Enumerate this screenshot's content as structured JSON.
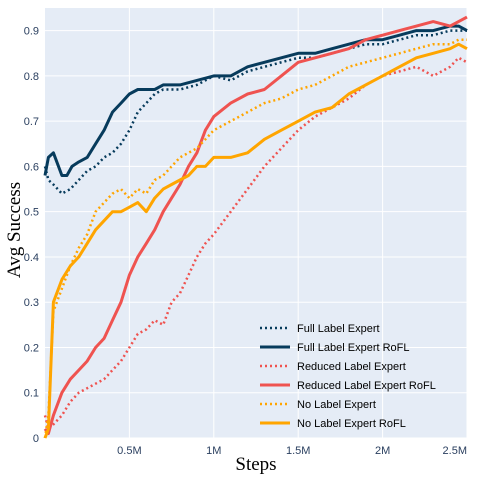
{
  "colors": {
    "plot_bg": "#e5ecf6",
    "grid": "#ffffff",
    "tick_text": "#2a3f5f",
    "full_label": "#073b5c",
    "reduced_label": "#ef5350",
    "no_label": "#ffa500"
  },
  "chart_data": {
    "type": "line",
    "xlabel": "Steps",
    "ylabel": "Avg Success",
    "xlim": [
      0,
      2500000
    ],
    "ylim": [
      0,
      0.95
    ],
    "xticks": [
      {
        "value": 500000,
        "label": "0.5M"
      },
      {
        "value": 1000000,
        "label": "1M"
      },
      {
        "value": 1500000,
        "label": "1.5M"
      },
      {
        "value": 2000000,
        "label": "2M"
      },
      {
        "value": 2500000,
        "label": "2.5M"
      }
    ],
    "yticks": [
      {
        "value": 0,
        "label": "0"
      },
      {
        "value": 0.1,
        "label": "0.1"
      },
      {
        "value": 0.2,
        "label": "0.2"
      },
      {
        "value": 0.3,
        "label": "0.3"
      },
      {
        "value": 0.4,
        "label": "0.4"
      },
      {
        "value": 0.5,
        "label": "0.5"
      },
      {
        "value": 0.6,
        "label": "0.6"
      },
      {
        "value": 0.7,
        "label": "0.7"
      },
      {
        "value": 0.8,
        "label": "0.8"
      },
      {
        "value": 0.9,
        "label": "0.9"
      }
    ],
    "grid": true,
    "legend_position": "bottom-right",
    "series": [
      {
        "name": "Full Label Expert",
        "color": "#073b5c",
        "dash": "dot",
        "x": [
          0,
          20000,
          50000,
          100000,
          150000,
          200000,
          250000,
          300000,
          350000,
          400000,
          450000,
          500000,
          550000,
          600000,
          650000,
          700000,
          800000,
          900000,
          1000000,
          1100000,
          1200000,
          1300000,
          1400000,
          1500000,
          1600000,
          1700000,
          1800000,
          1900000,
          2000000,
          2100000,
          2200000,
          2300000,
          2400000,
          2450000,
          2500000
        ],
        "y": [
          0.6,
          0.57,
          0.56,
          0.54,
          0.55,
          0.57,
          0.59,
          0.6,
          0.62,
          0.63,
          0.65,
          0.68,
          0.72,
          0.74,
          0.76,
          0.77,
          0.77,
          0.78,
          0.8,
          0.79,
          0.81,
          0.82,
          0.83,
          0.84,
          0.84,
          0.85,
          0.86,
          0.87,
          0.87,
          0.88,
          0.89,
          0.89,
          0.9,
          0.9,
          0.9
        ]
      },
      {
        "name": "Full Label Expert RoFL",
        "color": "#073b5c",
        "dash": "solid",
        "x": [
          0,
          20000,
          50000,
          80000,
          100000,
          130000,
          160000,
          200000,
          250000,
          300000,
          350000,
          400000,
          450000,
          500000,
          550000,
          600000,
          650000,
          700000,
          800000,
          900000,
          1000000,
          1100000,
          1200000,
          1300000,
          1400000,
          1500000,
          1600000,
          1700000,
          1800000,
          1900000,
          2000000,
          2100000,
          2200000,
          2300000,
          2400000,
          2450000,
          2500000
        ],
        "y": [
          0.58,
          0.62,
          0.63,
          0.6,
          0.58,
          0.58,
          0.6,
          0.61,
          0.62,
          0.65,
          0.68,
          0.72,
          0.74,
          0.76,
          0.77,
          0.77,
          0.77,
          0.78,
          0.78,
          0.79,
          0.8,
          0.8,
          0.82,
          0.83,
          0.84,
          0.85,
          0.85,
          0.86,
          0.87,
          0.88,
          0.88,
          0.89,
          0.9,
          0.9,
          0.91,
          0.91,
          0.9
        ]
      },
      {
        "name": "Reduced Label Expert",
        "color": "#ef5350",
        "dash": "dot",
        "x": [
          0,
          20000,
          50000,
          100000,
          150000,
          200000,
          250000,
          300000,
          350000,
          400000,
          450000,
          500000,
          550000,
          600000,
          650000,
          700000,
          750000,
          800000,
          850000,
          900000,
          950000,
          1000000,
          1100000,
          1200000,
          1300000,
          1400000,
          1500000,
          1600000,
          1700000,
          1800000,
          1900000,
          2000000,
          2100000,
          2200000,
          2300000,
          2400000,
          2450000,
          2500000
        ],
        "y": [
          0.05,
          0.02,
          0.03,
          0.05,
          0.08,
          0.1,
          0.11,
          0.12,
          0.13,
          0.15,
          0.17,
          0.2,
          0.23,
          0.24,
          0.26,
          0.25,
          0.3,
          0.32,
          0.36,
          0.4,
          0.43,
          0.45,
          0.5,
          0.55,
          0.6,
          0.64,
          0.68,
          0.71,
          0.73,
          0.75,
          0.78,
          0.8,
          0.81,
          0.82,
          0.8,
          0.82,
          0.84,
          0.83
        ]
      },
      {
        "name": "Reduced Label Expert RoFL",
        "color": "#ef5350",
        "dash": "solid",
        "x": [
          0,
          20000,
          50000,
          100000,
          150000,
          200000,
          250000,
          300000,
          350000,
          400000,
          450000,
          500000,
          550000,
          600000,
          650000,
          700000,
          750000,
          800000,
          850000,
          900000,
          950000,
          1000000,
          1100000,
          1200000,
          1300000,
          1400000,
          1500000,
          1600000,
          1700000,
          1800000,
          1900000,
          2000000,
          2100000,
          2200000,
          2300000,
          2400000,
          2450000,
          2500000
        ],
        "y": [
          0.02,
          0.01,
          0.05,
          0.1,
          0.13,
          0.15,
          0.17,
          0.2,
          0.22,
          0.26,
          0.3,
          0.36,
          0.4,
          0.43,
          0.46,
          0.5,
          0.53,
          0.56,
          0.6,
          0.63,
          0.68,
          0.71,
          0.74,
          0.76,
          0.77,
          0.8,
          0.83,
          0.84,
          0.85,
          0.86,
          0.88,
          0.89,
          0.9,
          0.91,
          0.92,
          0.91,
          0.92,
          0.93
        ]
      },
      {
        "name": "No Label Expert",
        "color": "#ffa500",
        "dash": "dot",
        "x": [
          0,
          20000,
          50000,
          100000,
          150000,
          200000,
          250000,
          300000,
          350000,
          400000,
          450000,
          500000,
          550000,
          600000,
          650000,
          700000,
          750000,
          800000,
          850000,
          900000,
          950000,
          1000000,
          1100000,
          1200000,
          1300000,
          1400000,
          1500000,
          1600000,
          1700000,
          1800000,
          1900000,
          2000000,
          2100000,
          2200000,
          2300000,
          2400000,
          2450000,
          2500000
        ],
        "y": [
          0.0,
          0.05,
          0.28,
          0.33,
          0.38,
          0.42,
          0.45,
          0.5,
          0.52,
          0.54,
          0.55,
          0.53,
          0.55,
          0.54,
          0.57,
          0.58,
          0.6,
          0.62,
          0.63,
          0.64,
          0.66,
          0.68,
          0.7,
          0.72,
          0.74,
          0.75,
          0.77,
          0.78,
          0.8,
          0.82,
          0.83,
          0.84,
          0.85,
          0.86,
          0.87,
          0.87,
          0.88,
          0.88
        ]
      },
      {
        "name": "No Label Expert RoFL",
        "color": "#ffa500",
        "dash": "solid",
        "x": [
          0,
          20000,
          50000,
          100000,
          150000,
          200000,
          250000,
          300000,
          350000,
          400000,
          450000,
          500000,
          550000,
          600000,
          650000,
          700000,
          750000,
          800000,
          850000,
          900000,
          950000,
          1000000,
          1100000,
          1200000,
          1300000,
          1400000,
          1500000,
          1600000,
          1700000,
          1800000,
          1900000,
          2000000,
          2100000,
          2200000,
          2300000,
          2400000,
          2450000,
          2500000
        ],
        "y": [
          0.0,
          0.02,
          0.3,
          0.35,
          0.38,
          0.4,
          0.43,
          0.46,
          0.48,
          0.5,
          0.5,
          0.51,
          0.52,
          0.5,
          0.53,
          0.55,
          0.56,
          0.57,
          0.58,
          0.6,
          0.6,
          0.62,
          0.62,
          0.63,
          0.66,
          0.68,
          0.7,
          0.72,
          0.73,
          0.76,
          0.78,
          0.8,
          0.82,
          0.84,
          0.85,
          0.86,
          0.87,
          0.86
        ]
      }
    ]
  }
}
